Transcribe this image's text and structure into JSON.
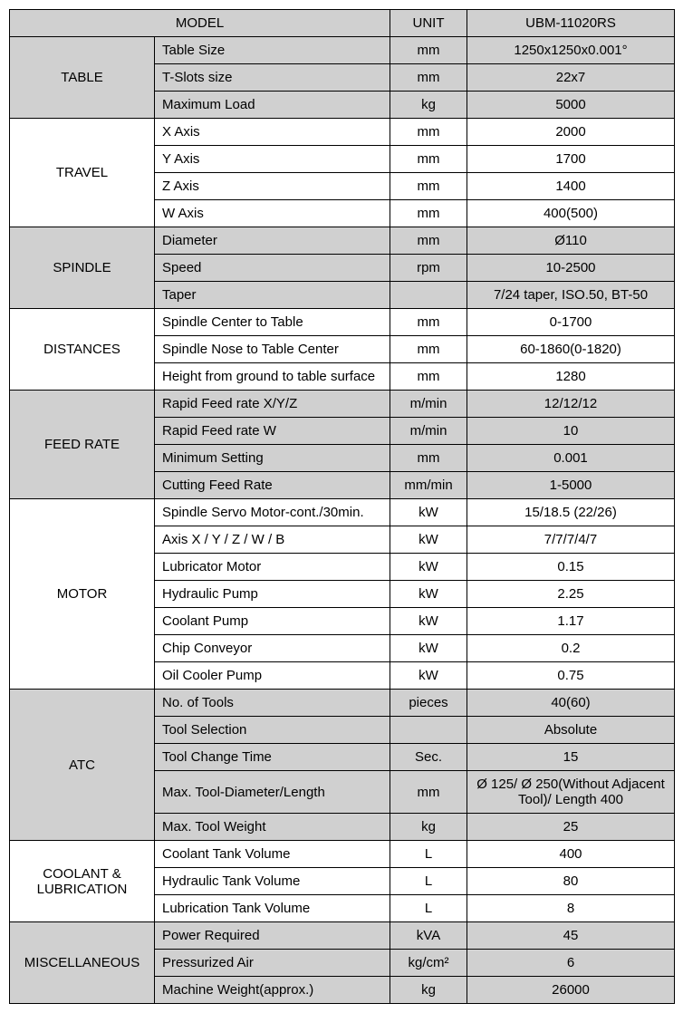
{
  "header": {
    "model_label": "MODEL",
    "unit_label": "UNIT",
    "product": "UBM-11020RS"
  },
  "groups": [
    {
      "name": "TABLE",
      "shaded": true,
      "rows": [
        {
          "spec": "Table Size",
          "unit": "mm",
          "value": "1250x1250x0.001°"
        },
        {
          "spec": "T-Slots size",
          "unit": "mm",
          "value": "22x7"
        },
        {
          "spec": "Maximum Load",
          "unit": "kg",
          "value": "5000"
        }
      ]
    },
    {
      "name": "TRAVEL",
      "shaded": false,
      "rows": [
        {
          "spec": "X Axis",
          "unit": "mm",
          "value": "2000"
        },
        {
          "spec": "Y Axis",
          "unit": "mm",
          "value": "1700"
        },
        {
          "spec": "Z Axis",
          "unit": "mm",
          "value": "1400"
        },
        {
          "spec": "W Axis",
          "unit": "mm",
          "value": "400(500)"
        }
      ]
    },
    {
      "name": "SPINDLE",
      "shaded": true,
      "rows": [
        {
          "spec": "Diameter",
          "unit": "mm",
          "value": "Ø110"
        },
        {
          "spec": "Speed",
          "unit": "rpm",
          "value": "10-2500"
        },
        {
          "spec": "Taper",
          "unit": "",
          "value": "7/24 taper, ISO.50, BT-50"
        }
      ]
    },
    {
      "name": "DISTANCES",
      "shaded": false,
      "rows": [
        {
          "spec": "Spindle Center to Table",
          "unit": "mm",
          "value": "0-1700"
        },
        {
          "spec": "Spindle Nose to Table Center",
          "unit": "mm",
          "value": "60-1860(0-1820)"
        },
        {
          "spec": "Height from ground to table surface",
          "unit": "mm",
          "value": "1280"
        }
      ]
    },
    {
      "name": "FEED RATE",
      "shaded": true,
      "rows": [
        {
          "spec": "Rapid Feed rate X/Y/Z",
          "unit": "m/min",
          "value": "12/12/12"
        },
        {
          "spec": "Rapid Feed rate W",
          "unit": "m/min",
          "value": "10"
        },
        {
          "spec": "Minimum Setting",
          "unit": "mm",
          "value": "0.001"
        },
        {
          "spec": "Cutting Feed Rate",
          "unit": "mm/min",
          "value": "1-5000"
        }
      ]
    },
    {
      "name": "MOTOR",
      "shaded": false,
      "rows": [
        {
          "spec": "Spindle Servo Motor-cont./30min.",
          "unit": "kW",
          "value": "15/18.5 (22/26)"
        },
        {
          "spec": "Axis X / Y / Z / W / B",
          "unit": "kW",
          "value": "7/7/7/4/7"
        },
        {
          "spec": "Lubricator Motor",
          "unit": "kW",
          "value": "0.15"
        },
        {
          "spec": "Hydraulic Pump",
          "unit": "kW",
          "value": "2.25"
        },
        {
          "spec": "Coolant Pump",
          "unit": "kW",
          "value": "1.17"
        },
        {
          "spec": "Chip Conveyor",
          "unit": "kW",
          "value": "0.2"
        },
        {
          "spec": "Oil Cooler Pump",
          "unit": "kW",
          "value": "0.75"
        }
      ]
    },
    {
      "name": "ATC",
      "shaded": true,
      "rows": [
        {
          "spec": "No. of Tools",
          "unit": "pieces",
          "value": "40(60)"
        },
        {
          "spec": "Tool Selection",
          "unit": "",
          "value": "Absolute"
        },
        {
          "spec": "Tool Change Time",
          "unit": "Sec.",
          "value": "15"
        },
        {
          "spec": "Max. Tool-Diameter/Length",
          "unit": "mm",
          "value": "Ø 125/ Ø 250(Without Adjacent Tool)/ Length 400"
        },
        {
          "spec": "Max. Tool Weight",
          "unit": "kg",
          "value": "25"
        }
      ]
    },
    {
      "name": "COOLANT & LUBRICATION",
      "shaded": false,
      "rows": [
        {
          "spec": "Coolant Tank Volume",
          "unit": "L",
          "value": "400"
        },
        {
          "spec": "Hydraulic Tank Volume",
          "unit": "L",
          "value": "80"
        },
        {
          "spec": "Lubrication Tank Volume",
          "unit": "L",
          "value": "8"
        }
      ]
    },
    {
      "name": "MISCELLANEOUS",
      "shaded": true,
      "rows": [
        {
          "spec": "Power Required",
          "unit": "kVA",
          "value": "45"
        },
        {
          "spec": "Pressurized Air",
          "unit": "kg/cm²",
          "value": "6"
        },
        {
          "spec": "Machine Weight(approx.)",
          "unit": "kg",
          "value": "26000"
        }
      ]
    }
  ],
  "colors": {
    "shaded_bg": "#d0d0d0",
    "border": "#000000",
    "text": "#000000",
    "page_bg": "#ffffff"
  }
}
